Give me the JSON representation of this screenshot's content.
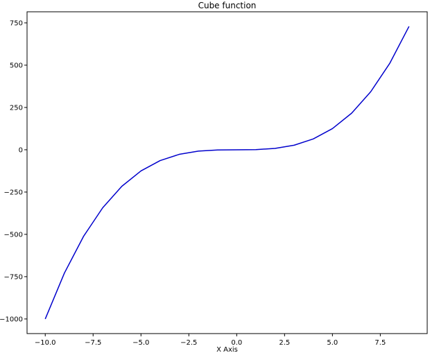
{
  "chart_data": {
    "type": "line",
    "title": "Cube function",
    "xlabel": "X Axis",
    "ylabel": "",
    "x": [
      -10,
      -9,
      -8,
      -7,
      -6,
      -5,
      -4,
      -3,
      -2,
      -1,
      0,
      1,
      2,
      3,
      4,
      5,
      6,
      7,
      8,
      9
    ],
    "series": [
      {
        "values": [
          -1000,
          -729,
          -512,
          -343,
          -216,
          -125,
          -64,
          -27,
          -8,
          -1,
          0,
          1,
          8,
          27,
          64,
          125,
          216,
          343,
          512,
          729
        ],
        "color": "#0000cc"
      }
    ],
    "xlim": [
      -10.95,
      9.95
    ],
    "ylim": [
      -1086.45,
      815.45
    ],
    "xticks": [
      -10.0,
      -7.5,
      -5.0,
      -2.5,
      0.0,
      2.5,
      5.0,
      7.5
    ],
    "xtick_labels": [
      "−10.0",
      "−7.5",
      "−5.0",
      "−2.5",
      "0.0",
      "2.5",
      "5.0",
      "7.5"
    ],
    "yticks": [
      -1000,
      -750,
      -500,
      -250,
      0,
      250,
      500,
      750
    ],
    "ytick_labels": [
      "−1000",
      "−750",
      "−500",
      "−250",
      "0",
      "250",
      "500",
      "750"
    ],
    "grid": false,
    "legend": false
  }
}
